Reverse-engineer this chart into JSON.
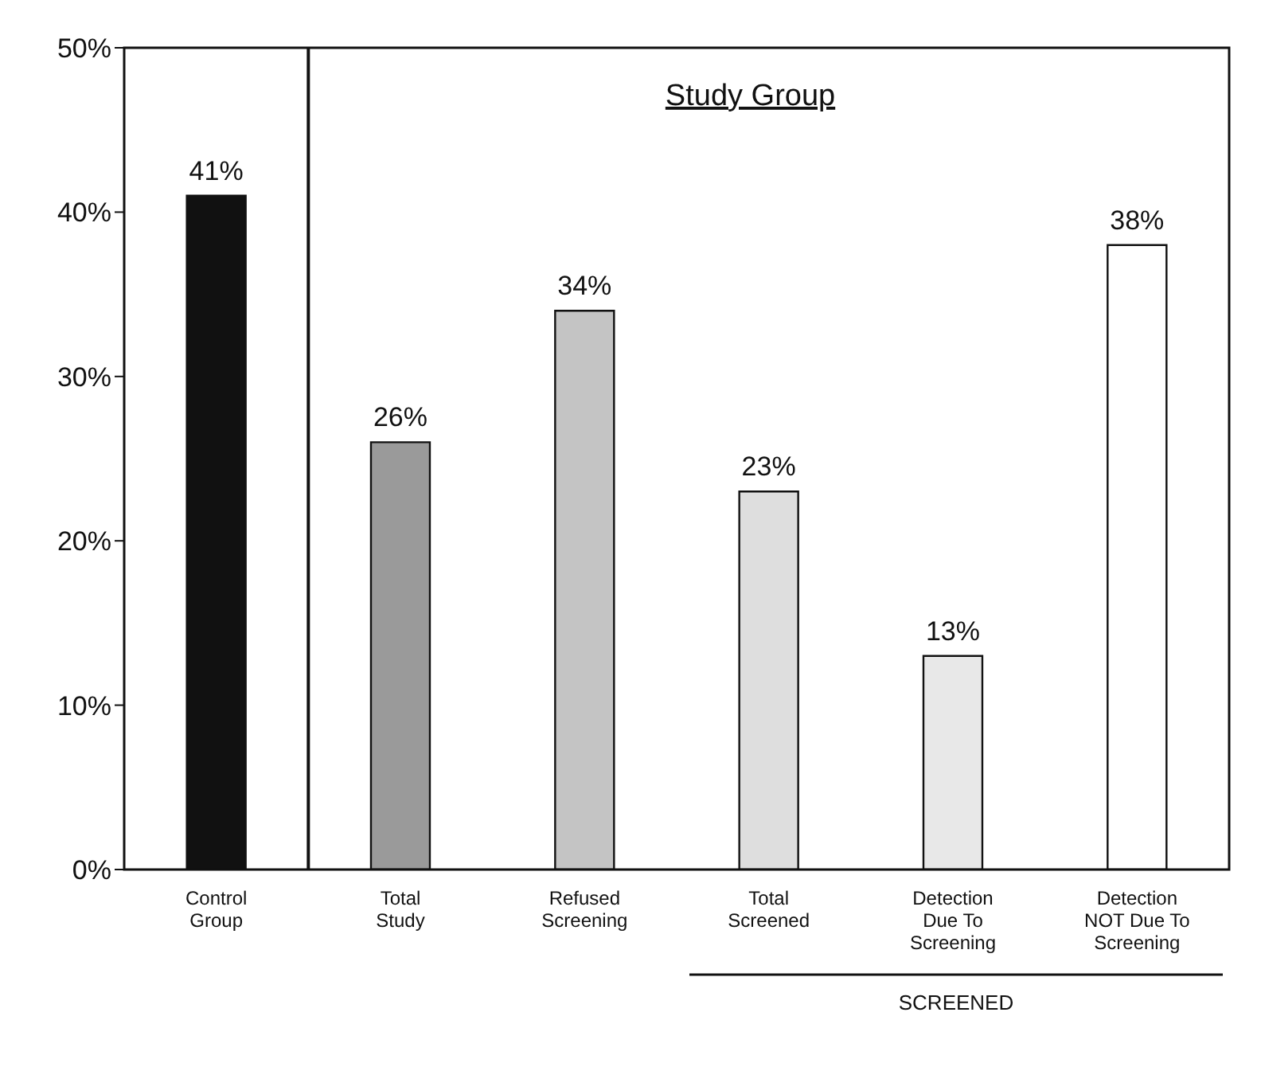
{
  "chart_data": {
    "type": "bar",
    "categories": [
      "Control Group",
      "Total Study",
      "Refused Screening",
      "Total Screened",
      "Detection Due To Screening",
      "Detection NOT Due To Screening"
    ],
    "values": [
      41,
      26,
      34,
      23,
      13,
      38
    ],
    "colors": [
      "#111111",
      "#9a9a9a",
      "#c4c4c4",
      "#dedede",
      "#e8e8e8",
      "#ffffff"
    ],
    "value_labels": [
      "41%",
      "26%",
      "34%",
      "23%",
      "13%",
      "38%"
    ],
    "ylim": [
      0,
      50
    ],
    "yticks": [
      {
        "value": 0,
        "label": "0%"
      },
      {
        "value": 10,
        "label": "10%"
      },
      {
        "value": 20,
        "label": "20%"
      },
      {
        "value": 30,
        "label": "30%"
      },
      {
        "value": 40,
        "label": "40%"
      },
      {
        "value": 50,
        "label": "50%"
      }
    ],
    "annotations": [
      "Study Group",
      "SCREENED"
    ],
    "grid": false,
    "legend": false
  }
}
